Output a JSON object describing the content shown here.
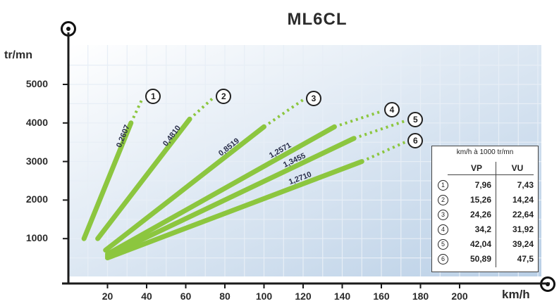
{
  "chart_data": {
    "type": "line",
    "title": "ML6CL",
    "ylabel": "tr/mn",
    "xlabel": "km/h",
    "xlim": [
      0,
      240
    ],
    "ylim": [
      0,
      6000
    ],
    "grid": true,
    "xticks": [
      "20",
      "40",
      "60",
      "80",
      "100",
      "120",
      "140",
      "160",
      "180",
      "200"
    ],
    "yticks": [
      "1000",
      "2000",
      "3000",
      "4000",
      "5000"
    ],
    "series": [
      {
        "marker": "1",
        "ratio": "0,2607",
        "color": "#8cc63f",
        "solid": [
          [
            8,
            1000
          ],
          [
            32,
            4000
          ]
        ],
        "dotted": [
          [
            32,
            4000
          ],
          [
            38,
            4650
          ]
        ]
      },
      {
        "marker": "2",
        "ratio": "0,4810",
        "color": "#8cc63f",
        "solid": [
          [
            15,
            1000
          ],
          [
            62,
            4100
          ]
        ],
        "dotted": [
          [
            62,
            4100
          ],
          [
            74,
            4650
          ]
        ]
      },
      {
        "marker": "3",
        "ratio": "0,8519",
        "color": "#8cc63f",
        "solid": [
          [
            19,
            700
          ],
          [
            100,
            3900
          ]
        ],
        "dotted": [
          [
            100,
            3900
          ],
          [
            120,
            4600
          ]
        ]
      },
      {
        "marker": "4",
        "ratio": "1,2571",
        "color": "#8cc63f",
        "solid": [
          [
            20,
            600
          ],
          [
            136,
            3900
          ]
        ],
        "dotted": [
          [
            136,
            3900
          ],
          [
            160,
            4300
          ]
        ]
      },
      {
        "marker": "5",
        "ratio": "1,3455",
        "color": "#8cc63f",
        "solid": [
          [
            20,
            550
          ],
          [
            146,
            3600
          ]
        ],
        "dotted": [
          [
            146,
            3600
          ],
          [
            172,
            4050
          ]
        ]
      },
      {
        "marker": "6",
        "ratio": "1,2710",
        "color": "#8cc63f",
        "solid": [
          [
            20,
            500
          ],
          [
            150,
            3000
          ]
        ],
        "dotted": [
          [
            150,
            3000
          ],
          [
            172,
            3500
          ]
        ]
      }
    ],
    "legend_table": {
      "title": "km/h à 1000 tr/mn",
      "columns": [
        "VP",
        "VU"
      ],
      "rows": [
        {
          "marker": "1",
          "vp": "7,96",
          "vu": "7,43"
        },
        {
          "marker": "2",
          "vp": "15,26",
          "vu": "14,24"
        },
        {
          "marker": "3",
          "vp": "24,26",
          "vu": "22,64"
        },
        {
          "marker": "4",
          "vp": "34,2",
          "vu": "31,92"
        },
        {
          "marker": "5",
          "vp": "42,04",
          "vu": "39,24"
        },
        {
          "marker": "6",
          "vp": "50,89",
          "vu": "47,5"
        }
      ],
      "placement": "bottom-right"
    },
    "colors": {
      "plot_bg_start": "#ffffff",
      "plot_bg_end": "#b9cfe6",
      "grid": "#e7eef6",
      "axis": "#1a1a1a",
      "series_line": "#8cc63f"
    }
  }
}
